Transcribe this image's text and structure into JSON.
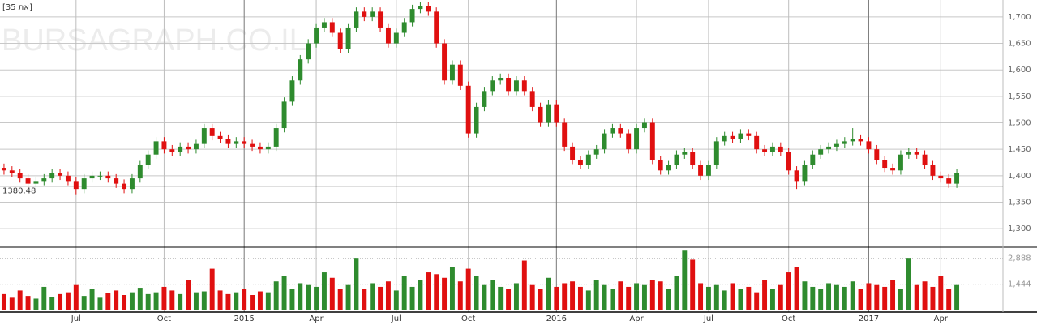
{
  "chart_data": {
    "type": "candlestick",
    "title": "[35 תא]",
    "watermark": "BURSAGRAPH.CO.IL",
    "categories": [
      null,
      null,
      null,
      null,
      null,
      null,
      null,
      null,
      null,
      "Jul",
      null,
      null,
      null,
      null,
      null,
      null,
      null,
      null,
      null,
      null,
      "Oct",
      null,
      null,
      null,
      null,
      null,
      null,
      null,
      null,
      null,
      "2015",
      null,
      null,
      null,
      null,
      null,
      null,
      null,
      null,
      "Apr",
      null,
      null,
      null,
      null,
      null,
      null,
      null,
      null,
      null,
      "Jul",
      null,
      null,
      null,
      null,
      null,
      null,
      null,
      null,
      "Oct",
      null,
      null,
      null,
      null,
      null,
      null,
      null,
      null,
      null,
      null,
      "2016",
      null,
      null,
      null,
      null,
      null,
      null,
      null,
      null,
      null,
      "Apr",
      null,
      null,
      null,
      null,
      null,
      null,
      null,
      null,
      "Jul",
      null,
      null,
      null,
      null,
      null,
      null,
      null,
      null,
      null,
      "Oct",
      null,
      null,
      null,
      null,
      null,
      null,
      null,
      null,
      null,
      "2017",
      null,
      null,
      null,
      null,
      null,
      null,
      null,
      null,
      "Apr",
      null,
      null
    ],
    "open": [
      1415,
      1410,
      1405,
      1395,
      1385,
      1390,
      1395,
      1405,
      1400,
      1390,
      1375,
      1395,
      1400,
      1400,
      1395,
      1385,
      1375,
      1395,
      1420,
      1440,
      1465,
      1450,
      1445,
      1455,
      1450,
      1460,
      1490,
      1475,
      1470,
      1460,
      1465,
      1460,
      1455,
      1450,
      1455,
      1490,
      1540,
      1580,
      1620,
      1650,
      1680,
      1690,
      1670,
      1640,
      1680,
      1710,
      1700,
      1710,
      1680,
      1650,
      1670,
      1690,
      1715,
      1720,
      1710,
      1650,
      1580,
      1610,
      1570,
      1480,
      1530,
      1560,
      1580,
      1585,
      1560,
      1580,
      1560,
      1530,
      1500,
      1535,
      1500,
      1455,
      1430,
      1420,
      1440,
      1450,
      1480,
      1490,
      1480,
      1450,
      1490,
      1500,
      1430,
      1410,
      1420,
      1440,
      1445,
      1420,
      1400,
      1420,
      1465,
      1475,
      1470,
      1480,
      1475,
      1450,
      1445,
      1455,
      1445,
      1410,
      1390,
      1420,
      1440,
      1450,
      1455,
      1460,
      1465,
      1470,
      1465,
      1450,
      1430,
      1415,
      1410,
      1440,
      1445,
      1440,
      1420,
      1400,
      1395,
      1385
    ],
    "high": [
      1423,
      1418,
      1413,
      1403,
      1398,
      1403,
      1413,
      1413,
      1408,
      1398,
      1403,
      1408,
      1408,
      1408,
      1403,
      1393,
      1403,
      1428,
      1448,
      1473,
      1473,
      1458,
      1463,
      1463,
      1468,
      1498,
      1498,
      1483,
      1478,
      1473,
      1473,
      1468,
      1463,
      1463,
      1498,
      1548,
      1588,
      1628,
      1658,
      1688,
      1698,
      1698,
      1678,
      1688,
      1718,
      1718,
      1718,
      1718,
      1688,
      1678,
      1698,
      1723,
      1728,
      1728,
      1718,
      1658,
      1618,
      1618,
      1578,
      1538,
      1568,
      1588,
      1593,
      1593,
      1588,
      1588,
      1568,
      1538,
      1543,
      1543,
      1508,
      1463,
      1438,
      1448,
      1458,
      1488,
      1498,
      1498,
      1488,
      1498,
      1508,
      1508,
      1438,
      1428,
      1448,
      1453,
      1453,
      1428,
      1428,
      1473,
      1483,
      1483,
      1488,
      1488,
      1483,
      1458,
      1463,
      1463,
      1453,
      1418,
      1428,
      1448,
      1458,
      1463,
      1468,
      1473,
      1490,
      1478,
      1473,
      1458,
      1438,
      1423,
      1448,
      1453,
      1453,
      1448,
      1428,
      1408,
      1403,
      1413
    ],
    "low": [
      1402,
      1397,
      1387,
      1377,
      1377,
      1382,
      1387,
      1392,
      1382,
      1365,
      1367,
      1387,
      1392,
      1387,
      1377,
      1367,
      1367,
      1387,
      1412,
      1432,
      1442,
      1437,
      1437,
      1442,
      1442,
      1452,
      1467,
      1462,
      1452,
      1452,
      1452,
      1447,
      1442,
      1442,
      1447,
      1482,
      1532,
      1572,
      1612,
      1642,
      1672,
      1662,
      1632,
      1632,
      1672,
      1692,
      1692,
      1672,
      1642,
      1642,
      1662,
      1682,
      1707,
      1702,
      1642,
      1572,
      1572,
      1562,
      1472,
      1472,
      1522,
      1552,
      1572,
      1552,
      1552,
      1552,
      1522,
      1492,
      1492,
      1492,
      1447,
      1422,
      1412,
      1412,
      1432,
      1442,
      1472,
      1472,
      1442,
      1442,
      1482,
      1422,
      1402,
      1402,
      1412,
      1432,
      1412,
      1392,
      1392,
      1412,
      1457,
      1462,
      1462,
      1467,
      1442,
      1437,
      1437,
      1437,
      1402,
      1375,
      1382,
      1412,
      1432,
      1442,
      1447,
      1452,
      1457,
      1457,
      1442,
      1422,
      1407,
      1402,
      1402,
      1432,
      1432,
      1412,
      1392,
      1387,
      1377,
      1377
    ],
    "close": [
      1410,
      1405,
      1395,
      1385,
      1390,
      1395,
      1405,
      1400,
      1390,
      1375,
      1395,
      1400,
      1400,
      1395,
      1385,
      1375,
      1395,
      1420,
      1440,
      1465,
      1450,
      1445,
      1455,
      1450,
      1460,
      1490,
      1475,
      1470,
      1460,
      1465,
      1460,
      1455,
      1450,
      1455,
      1490,
      1540,
      1580,
      1620,
      1650,
      1680,
      1690,
      1670,
      1640,
      1680,
      1710,
      1700,
      1710,
      1680,
      1650,
      1670,
      1690,
      1715,
      1720,
      1710,
      1650,
      1580,
      1610,
      1570,
      1480,
      1530,
      1560,
      1580,
      1585,
      1560,
      1580,
      1560,
      1530,
      1500,
      1535,
      1500,
      1455,
      1430,
      1420,
      1440,
      1450,
      1480,
      1490,
      1480,
      1450,
      1490,
      1500,
      1430,
      1410,
      1420,
      1440,
      1445,
      1420,
      1400,
      1420,
      1465,
      1475,
      1470,
      1480,
      1475,
      1450,
      1445,
      1455,
      1445,
      1410,
      1390,
      1420,
      1440,
      1450,
      1455,
      1460,
      1465,
      1470,
      1465,
      1450,
      1430,
      1415,
      1410,
      1440,
      1445,
      1440,
      1420,
      1400,
      1395,
      1385,
      1405
    ],
    "up_color": "#2e8b2e",
    "down_color": "#e01010",
    "ylim": [
      1265,
      1732
    ],
    "yticks": [
      {
        "value": 1300,
        "label": "1,300"
      },
      {
        "value": 1350,
        "label": "1,350"
      },
      {
        "value": 1400,
        "label": "1,400"
      },
      {
        "value": 1450,
        "label": "1,450"
      },
      {
        "value": 1500,
        "label": "1,500"
      },
      {
        "value": 1550,
        "label": "1,550"
      },
      {
        "value": 1600,
        "label": "1,600"
      },
      {
        "value": 1650,
        "label": "1,650"
      },
      {
        "value": 1700,
        "label": "1,700"
      }
    ],
    "reference_line": 1380.48,
    "grid": true,
    "volume": {
      "values": [
        900,
        700,
        1100,
        800,
        650,
        1300,
        750,
        900,
        1000,
        1400,
        800,
        1200,
        700,
        950,
        1100,
        850,
        1000,
        1250,
        900,
        1000,
        1300,
        1100,
        900,
        1700,
        1000,
        1050,
        2300,
        1100,
        900,
        1000,
        1200,
        850,
        1050,
        1000,
        1600,
        1900,
        1200,
        1500,
        1400,
        1300,
        2100,
        1800,
        1200,
        1400,
        2900,
        1200,
        1500,
        1300,
        1600,
        1100,
        1900,
        1300,
        1700,
        2100,
        2000,
        1800,
        2400,
        1600,
        2300,
        1900,
        1400,
        1700,
        1300,
        1200,
        1500,
        2750,
        1400,
        1200,
        1800,
        1300,
        1500,
        1600,
        1300,
        1100,
        1700,
        1400,
        1200,
        1600,
        1300,
        1500,
        1400,
        1700,
        1600,
        1200,
        1900,
        3300,
        2800,
        1500,
        1300,
        1400,
        1100,
        1500,
        1200,
        1300,
        1000,
        1700,
        1200,
        1400,
        2100,
        2400,
        1600,
        1300,
        1200,
        1500,
        1400,
        1300,
        1600,
        1200,
        1500,
        1400,
        1300,
        1700,
        1200,
        2900,
        1400,
        1600,
        1300,
        1900,
        1200,
        1400
      ],
      "ylim": [
        0,
        3400
      ],
      "yticks": [
        {
          "value": 1444,
          "label": "1,444"
        },
        {
          "value": 2888,
          "label": "2,888"
        }
      ]
    }
  }
}
